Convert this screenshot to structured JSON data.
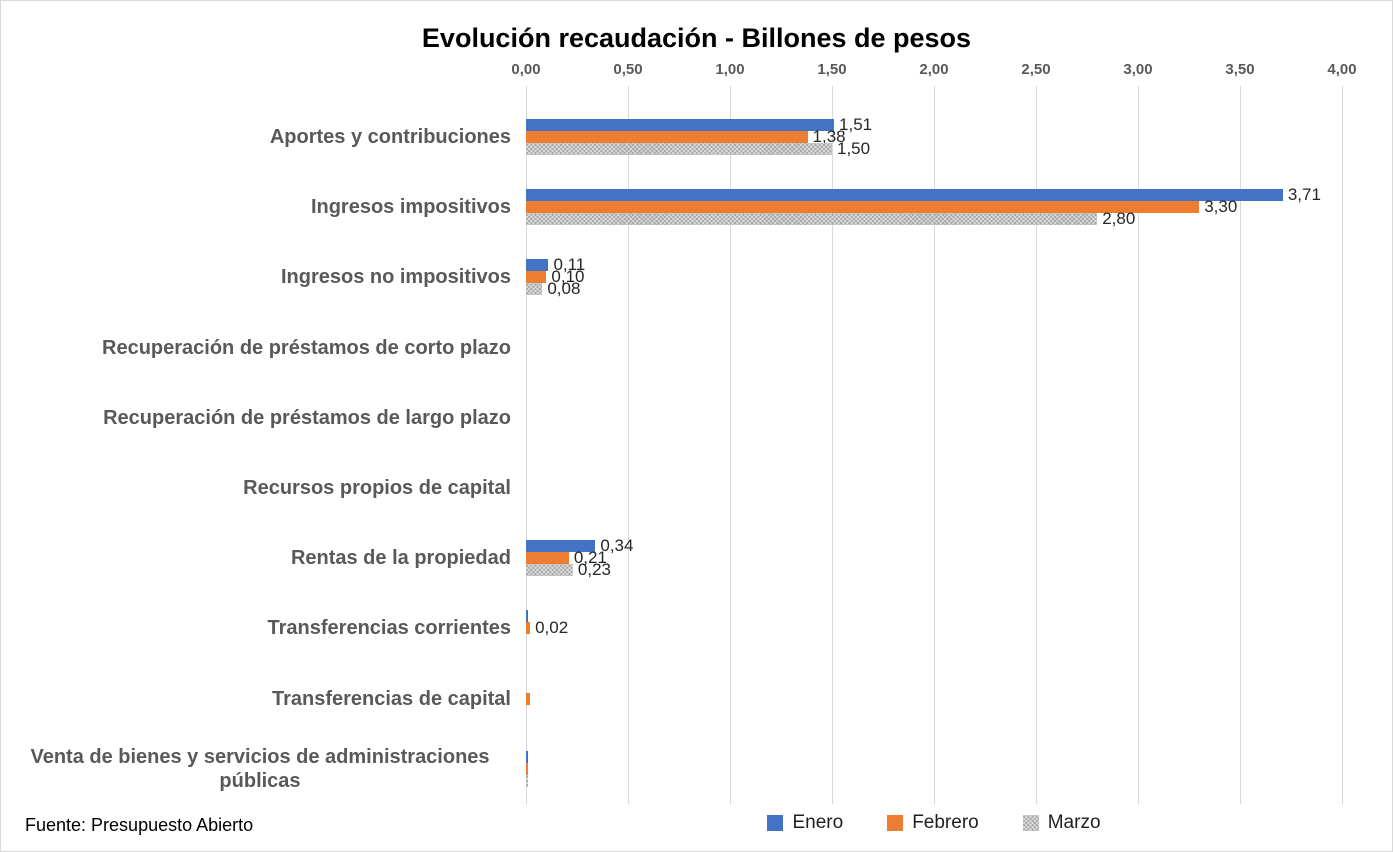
{
  "title": "Evolución recaudación - Billones de pesos",
  "source_note": "Fuente: Presupuesto Abierto",
  "chart_data": {
    "type": "bar",
    "orientation": "horizontal",
    "title": "Evolución recaudación - Billones de pesos",
    "categories": [
      "Aportes y contribuciones",
      "Ingresos impositivos",
      "Ingresos no impositivos",
      "Recuperación de préstamos de corto plazo",
      "Recuperación de préstamos de largo plazo",
      "Recursos propios de capital",
      "Rentas de la propiedad",
      "Transferencias corrientes",
      "Transferencias de capital",
      "Venta de bienes y servicios de administraciones públicas"
    ],
    "series": [
      {
        "name": "Enero",
        "color": "#4472C4",
        "pattern": false,
        "values": [
          1.51,
          3.71,
          0.11,
          0,
          0,
          0,
          0.34,
          0.01,
          0,
          0.01
        ],
        "labels": [
          "1,51",
          "3,71",
          "0,11",
          "",
          "",
          "",
          "0,34",
          "",
          "",
          ""
        ]
      },
      {
        "name": "Febrero",
        "color": "#ED7D31",
        "pattern": false,
        "values": [
          1.38,
          3.3,
          0.1,
          0,
          0,
          0,
          0.21,
          0.02,
          0.02,
          0.01
        ],
        "labels": [
          "1,38",
          "3,30",
          "0,10",
          "",
          "",
          "",
          "0,21",
          "0,02",
          "",
          ""
        ]
      },
      {
        "name": "Marzo",
        "color": "#A6A6A6",
        "pattern": true,
        "values": [
          1.5,
          2.8,
          0.08,
          0,
          0,
          0,
          0.23,
          0,
          0,
          0.01
        ],
        "labels": [
          "1,50",
          "2,80",
          "0,08",
          "",
          "",
          "",
          "0,23",
          "",
          "",
          ""
        ]
      }
    ],
    "x_ticks": [
      "0,00",
      "0,50",
      "1,00",
      "1,50",
      "2,00",
      "2,50",
      "3,00",
      "3,50",
      "4,00"
    ],
    "xlim": [
      0,
      4
    ],
    "grid": true,
    "legend_position": "bottom",
    "gridline_color": "#D9D9D9",
    "axis_text_color": "#595959",
    "value_label_color": "#262626"
  }
}
